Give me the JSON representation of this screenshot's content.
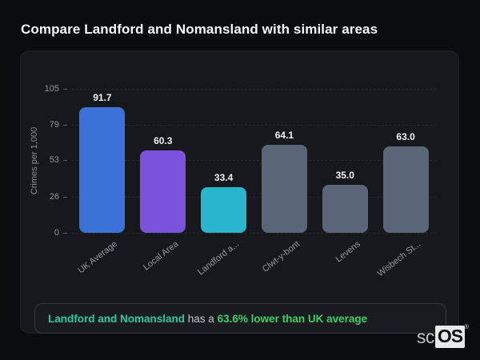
{
  "header": {
    "title": "Compare Landford and Nomansland with similar areas"
  },
  "chart_data": {
    "type": "bar",
    "title": "Compare Landford and Nomansland with similar areas",
    "xlabel": "",
    "ylabel": "Crimes per 1,000",
    "ylim": [
      0,
      105
    ],
    "yticks": [
      0,
      26,
      53,
      79,
      105
    ],
    "grid": "horizontal-dashed",
    "legend": "none",
    "categories": [
      "UK Average",
      "Local Area",
      "Landford a...",
      "Clwt-y-bont",
      "Levens",
      "Wisbech St..."
    ],
    "values": [
      91.7,
      60.3,
      33.4,
      64.1,
      35.0,
      63.0
    ],
    "value_labels": [
      "91.7",
      "60.3",
      "33.4",
      "64.1",
      "35.0",
      "63.0"
    ],
    "bar_colors": [
      "#3b72d8",
      "#7a52dc",
      "#29b5cd",
      "#5a6578",
      "#5a6578",
      "#5a6578"
    ]
  },
  "note": {
    "area_name": "Landford and Nomansland",
    "connector": " has a ",
    "stat": "63.6% lower than UK average",
    "area_color": "#2ec8a2",
    "connector_color": "#c2c5c9",
    "stat_color": "#3bd069"
  },
  "logo": {
    "prefix": "sc",
    "suffix": "OS",
    "registered": "®"
  },
  "colors": {
    "page_bg": "#0b0c0e",
    "panel_bg": "#17181c",
    "note_bg": "#191b1e",
    "note_border": "#35393f",
    "gridline": "#26282e",
    "tick_text": "#8f949c",
    "value_text": "#eef0f3",
    "axis_title_text": "#888d95"
  }
}
